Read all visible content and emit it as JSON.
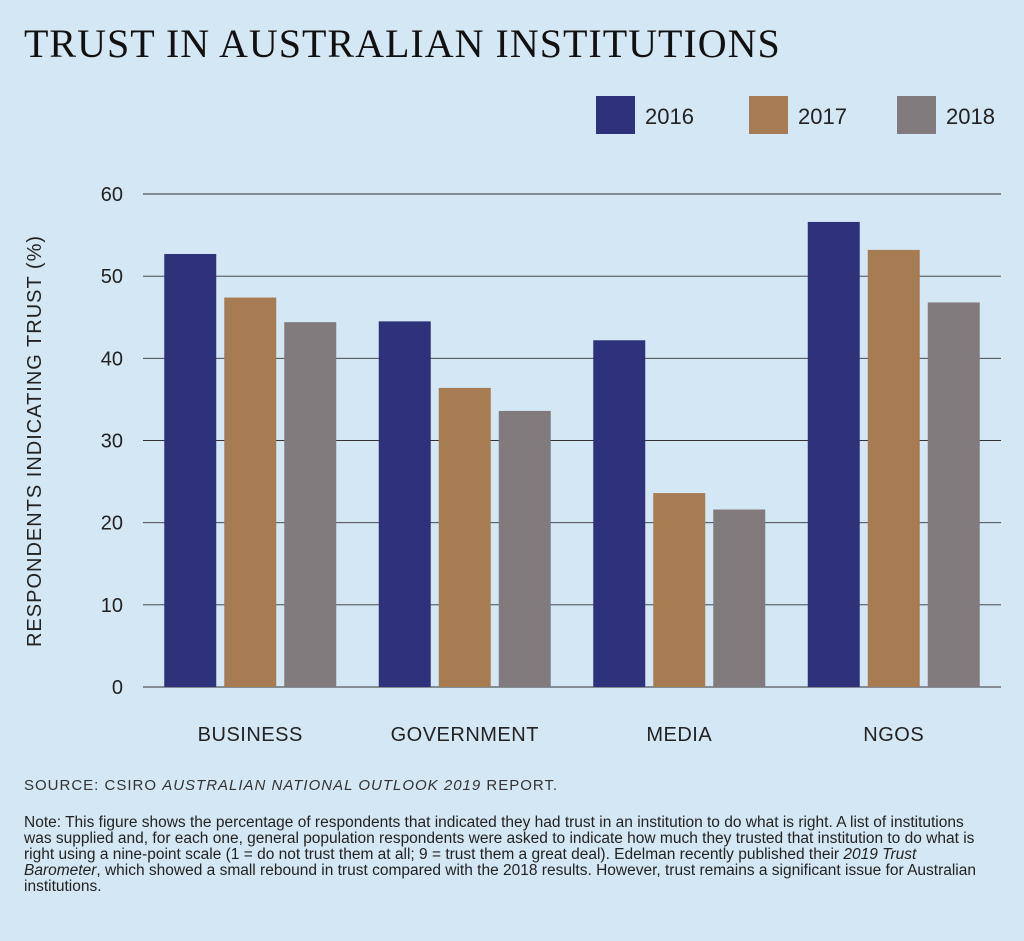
{
  "title": "TRUST IN AUSTRALIAN INSTITUTIONS",
  "source": {
    "prefix": "SOURCE: CSIRO ",
    "report": "AUSTRALIAN NATIONAL OUTLOOK 2019",
    "suffix": " REPORT."
  },
  "note": {
    "part1": "Note: This figure shows the percentage of respondents that indicated they had trust in an institution to do what is right. A list of institutions was supplied and, for each one, general population respondents were asked to indicate how much they trusted that institution to do what is right using a nine-point scale (1 = do not trust them at all; 9 = trust them a great deal). Edelman recently published their ",
    "italic": "2019 Trust Barometer",
    "part2": ", which showed a small rebound in trust compared with the 2018 results. However, trust remains a significant issue for Australian institutions."
  },
  "chart_data": {
    "type": "bar",
    "title": "TRUST IN AUSTRALIAN INSTITUTIONS",
    "xlabel": "",
    "ylabel": "RESPONDENTS INDICATING TRUST (%)",
    "categories": [
      "BUSINESS",
      "GOVERNMENT",
      "MEDIA",
      "NGOS"
    ],
    "series": [
      {
        "name": "2016",
        "color": "#2e327a",
        "values": [
          52.7,
          44.5,
          42.2,
          56.6
        ]
      },
      {
        "name": "2017",
        "color": "#a87c53",
        "values": [
          47.4,
          36.4,
          23.6,
          53.2
        ]
      },
      {
        "name": "2018",
        "color": "#817b7d",
        "values": [
          44.4,
          33.6,
          21.6,
          46.8
        ]
      }
    ],
    "ylim": [
      0,
      60
    ],
    "yticks": [
      0,
      10,
      20,
      30,
      40,
      50,
      60
    ],
    "grid": true,
    "legend": "top-right"
  }
}
